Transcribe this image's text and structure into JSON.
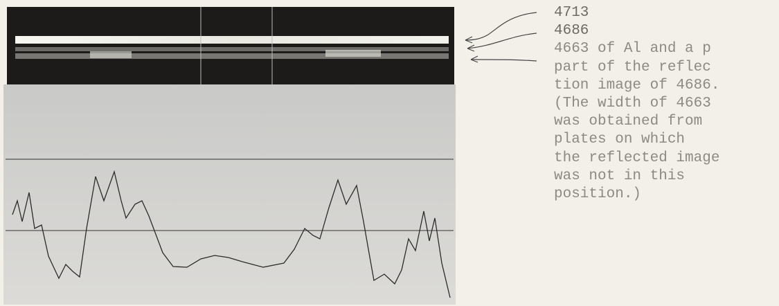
{
  "note": {
    "lines": [
      "4713",
      "4686",
      "4663 of Al and a p",
      "part of the reflec",
      "tion image of 4686.",
      "(The width of 4663",
      "was obtained from",
      "plates on which",
      "the reflected image",
      "was not in this",
      "position.)"
    ]
  }
}
